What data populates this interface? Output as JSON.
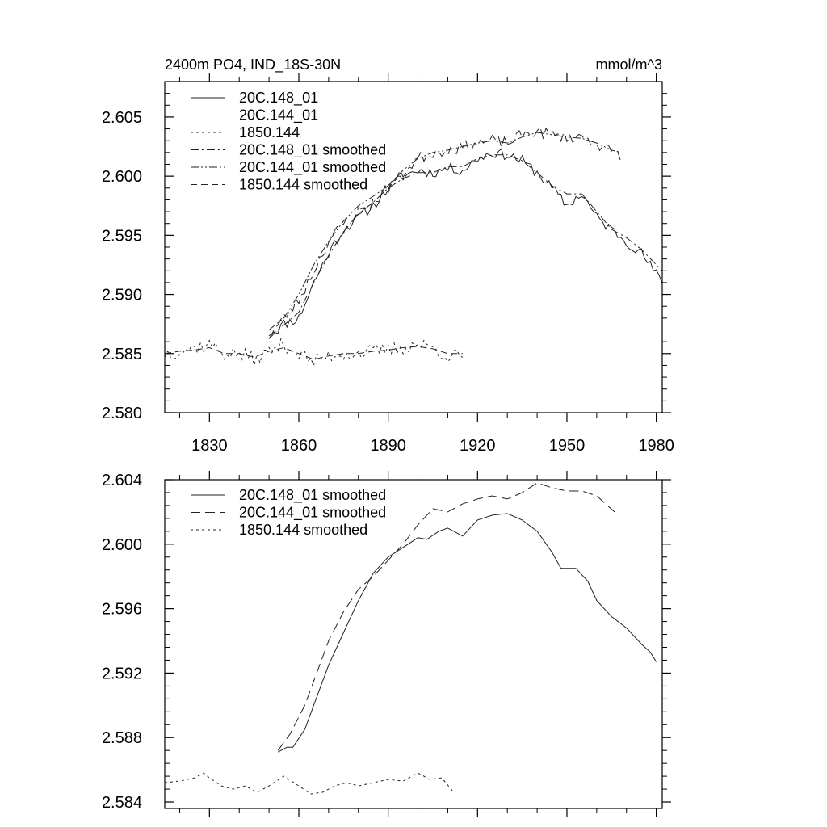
{
  "chart_data": [
    {
      "type": "line",
      "title": "2400m PO4, IND_18S-30N",
      "units": "mmol/m^3",
      "xlabel": "",
      "ylabel": "",
      "xlim": [
        1815,
        1982
      ],
      "ylim": [
        2.58,
        2.608
      ],
      "xticks": [
        1830,
        1860,
        1890,
        1920,
        1950,
        1980
      ],
      "xtick_labels": [
        "1830",
        "1860",
        "1890",
        "1920",
        "1950",
        "1980"
      ],
      "yticks": [
        2.58,
        2.585,
        2.59,
        2.595,
        2.6,
        2.605
      ],
      "ytick_labels": [
        "2.580",
        "2.585",
        "2.590",
        "2.595",
        "2.600",
        "2.605"
      ],
      "legend": "top-left",
      "series": [
        {
          "name": "20C.148_01",
          "dash": "solid",
          "x_start": 1850,
          "x_end": 1982,
          "noise": 0.00045,
          "seed": 11,
          "anchors": [
            [
              1850,
              2.5865
            ],
            [
              1855,
              2.5875
            ],
            [
              1860,
              2.588
            ],
            [
              1865,
              2.591
            ],
            [
              1870,
              2.5935
            ],
            [
              1875,
              2.5955
            ],
            [
              1880,
              2.5965
            ],
            [
              1885,
              2.5975
            ],
            [
              1890,
              2.599
            ],
            [
              1895,
              2.6
            ],
            [
              1900,
              2.6005
            ],
            [
              1905,
              2.6003
            ],
            [
              1910,
              2.6007
            ],
            [
              1915,
              2.6005
            ],
            [
              1920,
              2.6015
            ],
            [
              1925,
              2.602
            ],
            [
              1930,
              2.6018
            ],
            [
              1935,
              2.6013
            ],
            [
              1940,
              2.6003
            ],
            [
              1945,
              2.599
            ],
            [
              1950,
              2.5975
            ],
            [
              1955,
              2.5985
            ],
            [
              1960,
              2.5965
            ],
            [
              1965,
              2.5955
            ],
            [
              1970,
              2.5945
            ],
            [
              1975,
              2.5935
            ],
            [
              1982,
              2.591
            ]
          ]
        },
        {
          "name": "20C.144_01",
          "dash": "12,6",
          "x_start": 1850,
          "x_end": 1968,
          "noise": 0.0005,
          "seed": 23,
          "anchors": [
            [
              1850,
              2.5865
            ],
            [
              1855,
              2.588
            ],
            [
              1860,
              2.5895
            ],
            [
              1865,
              2.592
            ],
            [
              1870,
              2.5945
            ],
            [
              1875,
              2.596
            ],
            [
              1880,
              2.597
            ],
            [
              1885,
              2.5978
            ],
            [
              1890,
              2.599
            ],
            [
              1895,
              2.6003
            ],
            [
              1900,
              2.6015
            ],
            [
              1905,
              2.602
            ],
            [
              1910,
              2.6022
            ],
            [
              1915,
              2.6025
            ],
            [
              1920,
              2.6028
            ],
            [
              1925,
              2.603
            ],
            [
              1930,
              2.6028
            ],
            [
              1935,
              2.6035
            ],
            [
              1940,
              2.6038
            ],
            [
              1945,
              2.6035
            ],
            [
              1950,
              2.6033
            ],
            [
              1955,
              2.6033
            ],
            [
              1960,
              2.6028
            ],
            [
              1965,
              2.602
            ],
            [
              1968,
              2.6018
            ]
          ]
        },
        {
          "name": "1850.144",
          "dash": "3,4",
          "x_start": 1815,
          "x_end": 1915,
          "noise": 0.0006,
          "seed": 37,
          "anchors": [
            [
              1815,
              2.585
            ],
            [
              1820,
              2.5852
            ],
            [
              1825,
              2.5855
            ],
            [
              1830,
              2.5858
            ],
            [
              1835,
              2.585
            ],
            [
              1840,
              2.585
            ],
            [
              1845,
              2.5845
            ],
            [
              1850,
              2.5852
            ],
            [
              1855,
              2.5858
            ],
            [
              1860,
              2.585
            ],
            [
              1865,
              2.5843
            ],
            [
              1870,
              2.5848
            ],
            [
              1875,
              2.585
            ],
            [
              1880,
              2.585
            ],
            [
              1885,
              2.5852
            ],
            [
              1890,
              2.5853
            ],
            [
              1895,
              2.5855
            ],
            [
              1900,
              2.5858
            ],
            [
              1905,
              2.5855
            ],
            [
              1910,
              2.5848
            ],
            [
              1915,
              2.5848
            ]
          ]
        },
        {
          "name": "20C.148_01 smoothed",
          "dash": "10,4,2,4",
          "x_start": 1850,
          "x_end": 1982,
          "noise": 0.0,
          "seed": 0,
          "anchors": [
            [
              1850,
              2.5865
            ],
            [
              1855,
              2.5874
            ],
            [
              1860,
              2.5885
            ],
            [
              1865,
              2.591
            ],
            [
              1870,
              2.5933
            ],
            [
              1875,
              2.5953
            ],
            [
              1880,
              2.5968
            ],
            [
              1885,
              2.5978
            ],
            [
              1890,
              2.599
            ],
            [
              1895,
              2.5998
            ],
            [
              1900,
              2.6003
            ],
            [
              1905,
              2.6003
            ],
            [
              1910,
              2.6008
            ],
            [
              1915,
              2.6008
            ],
            [
              1920,
              2.6015
            ],
            [
              1925,
              2.6018
            ],
            [
              1930,
              2.6018
            ],
            [
              1935,
              2.6013
            ],
            [
              1940,
              2.6003
            ],
            [
              1945,
              2.5992
            ],
            [
              1950,
              2.5985
            ],
            [
              1955,
              2.5985
            ],
            [
              1960,
              2.597
            ],
            [
              1965,
              2.5955
            ],
            [
              1970,
              2.5948
            ],
            [
              1975,
              2.5938
            ],
            [
              1982,
              2.592
            ]
          ]
        },
        {
          "name": "20C.144_01 smoothed",
          "dash": "10,3,2,3,2,3",
          "x_start": 1850,
          "x_end": 1968,
          "noise": 0.0,
          "seed": 0,
          "anchors": [
            [
              1850,
              2.587
            ],
            [
              1855,
              2.588
            ],
            [
              1860,
              2.59
            ],
            [
              1865,
              2.5925
            ],
            [
              1870,
              2.5945
            ],
            [
              1875,
              2.5962
            ],
            [
              1880,
              2.5975
            ],
            [
              1885,
              2.5983
            ],
            [
              1890,
              2.5992
            ],
            [
              1895,
              2.6005
            ],
            [
              1900,
              2.6015
            ],
            [
              1905,
              2.602
            ],
            [
              1910,
              2.6022
            ],
            [
              1915,
              2.6025
            ],
            [
              1920,
              2.6028
            ],
            [
              1925,
              2.603
            ],
            [
              1930,
              2.6028
            ],
            [
              1935,
              2.6033
            ],
            [
              1940,
              2.6037
            ],
            [
              1945,
              2.6035
            ],
            [
              1950,
              2.6033
            ],
            [
              1955,
              2.6032
            ],
            [
              1960,
              2.6028
            ],
            [
              1965,
              2.6022
            ],
            [
              1968,
              2.602
            ]
          ]
        },
        {
          "name": "1850.144 smoothed",
          "dash": "8,5",
          "x_start": 1815,
          "x_end": 1915,
          "noise": 0.0,
          "seed": 0,
          "anchors": [
            [
              1815,
              2.585
            ],
            [
              1820,
              2.5852
            ],
            [
              1825,
              2.5853
            ],
            [
              1830,
              2.5855
            ],
            [
              1835,
              2.585
            ],
            [
              1840,
              2.585
            ],
            [
              1845,
              2.5847
            ],
            [
              1850,
              2.5852
            ],
            [
              1855,
              2.5855
            ],
            [
              1860,
              2.585
            ],
            [
              1865,
              2.5845
            ],
            [
              1870,
              2.5848
            ],
            [
              1875,
              2.585
            ],
            [
              1880,
              2.585
            ],
            [
              1885,
              2.5852
            ],
            [
              1890,
              2.5853
            ],
            [
              1895,
              2.5855
            ],
            [
              1900,
              2.5856
            ],
            [
              1905,
              2.5854
            ],
            [
              1910,
              2.585
            ],
            [
              1915,
              2.585
            ]
          ]
        }
      ]
    },
    {
      "type": "line",
      "title": "",
      "units": "",
      "xlabel": "",
      "ylabel": "",
      "xlim": [
        1815,
        1982
      ],
      "ylim": [
        2.5836,
        2.604
      ],
      "xticks": [
        1830,
        1860,
        1890,
        1920,
        1950,
        1980
      ],
      "xtick_labels": [],
      "yticks": [
        2.584,
        2.588,
        2.592,
        2.596,
        2.6,
        2.604
      ],
      "ytick_labels": [
        "2.584",
        "2.588",
        "2.592",
        "2.596",
        "2.600",
        "2.604"
      ],
      "legend": "top-left",
      "series": [
        {
          "name": "20C.148_01 smoothed",
          "dash": "solid",
          "x_start": 1853,
          "x_end": 1980,
          "noise": 0.0,
          "seed": 0,
          "anchors": [
            [
              1853,
              2.5871
            ],
            [
              1856,
              2.5874
            ],
            [
              1858,
              2.5874
            ],
            [
              1862,
              2.5885
            ],
            [
              1866,
              2.5905
            ],
            [
              1870,
              2.5925
            ],
            [
              1875,
              2.5945
            ],
            [
              1880,
              2.5965
            ],
            [
              1885,
              2.5982
            ],
            [
              1890,
              2.5992
            ],
            [
              1895,
              2.5998
            ],
            [
              1900,
              2.6004
            ],
            [
              1903,
              2.6003
            ],
            [
              1907,
              2.6008
            ],
            [
              1910,
              2.601
            ],
            [
              1915,
              2.6005
            ],
            [
              1920,
              2.6015
            ],
            [
              1925,
              2.6018
            ],
            [
              1930,
              2.6019
            ],
            [
              1935,
              2.6015
            ],
            [
              1940,
              2.6008
            ],
            [
              1945,
              2.5995
            ],
            [
              1948,
              2.5985
            ],
            [
              1950,
              2.5985
            ],
            [
              1953,
              2.5985
            ],
            [
              1957,
              2.5977
            ],
            [
              1960,
              2.5965
            ],
            [
              1965,
              2.5955
            ],
            [
              1970,
              2.5948
            ],
            [
              1975,
              2.5938
            ],
            [
              1978,
              2.5933
            ],
            [
              1980,
              2.5927
            ]
          ]
        },
        {
          "name": "20C.144_01 smoothed",
          "dash": "12,6",
          "x_start": 1853,
          "x_end": 1966,
          "noise": 0.0,
          "seed": 0,
          "anchors": [
            [
              1853,
              2.5872
            ],
            [
              1857,
              2.5882
            ],
            [
              1862,
              2.59
            ],
            [
              1866,
              2.592
            ],
            [
              1870,
              2.594
            ],
            [
              1875,
              2.5958
            ],
            [
              1880,
              2.5972
            ],
            [
              1885,
              2.598
            ],
            [
              1890,
              2.599
            ],
            [
              1895,
              2.6
            ],
            [
              1900,
              2.6012
            ],
            [
              1905,
              2.6022
            ],
            [
              1910,
              2.602
            ],
            [
              1915,
              2.6025
            ],
            [
              1920,
              2.6028
            ],
            [
              1925,
              2.603
            ],
            [
              1930,
              2.6028
            ],
            [
              1935,
              2.6032
            ],
            [
              1940,
              2.6038
            ],
            [
              1945,
              2.6035
            ],
            [
              1950,
              2.6033
            ],
            [
              1955,
              2.6033
            ],
            [
              1960,
              2.603
            ],
            [
              1966,
              2.602
            ]
          ]
        },
        {
          "name": "1850.144 smoothed",
          "dash": "3,4",
          "x_start": 1815,
          "x_end": 1912,
          "noise": 0.0,
          "seed": 0,
          "anchors": [
            [
              1815,
              2.5852
            ],
            [
              1820,
              2.5853
            ],
            [
              1825,
              2.5855
            ],
            [
              1828,
              2.5858
            ],
            [
              1830,
              2.5855
            ],
            [
              1834,
              2.585
            ],
            [
              1838,
              2.5848
            ],
            [
              1842,
              2.585
            ],
            [
              1846,
              2.5846
            ],
            [
              1850,
              2.585
            ],
            [
              1855,
              2.5856
            ],
            [
              1860,
              2.585
            ],
            [
              1864,
              2.5845
            ],
            [
              1868,
              2.5846
            ],
            [
              1872,
              2.585
            ],
            [
              1876,
              2.5852
            ],
            [
              1880,
              2.585
            ],
            [
              1885,
              2.5852
            ],
            [
              1890,
              2.5854
            ],
            [
              1895,
              2.5853
            ],
            [
              1900,
              2.5858
            ],
            [
              1904,
              2.5854
            ],
            [
              1908,
              2.5855
            ],
            [
              1912,
              2.5846
            ]
          ]
        }
      ]
    }
  ]
}
